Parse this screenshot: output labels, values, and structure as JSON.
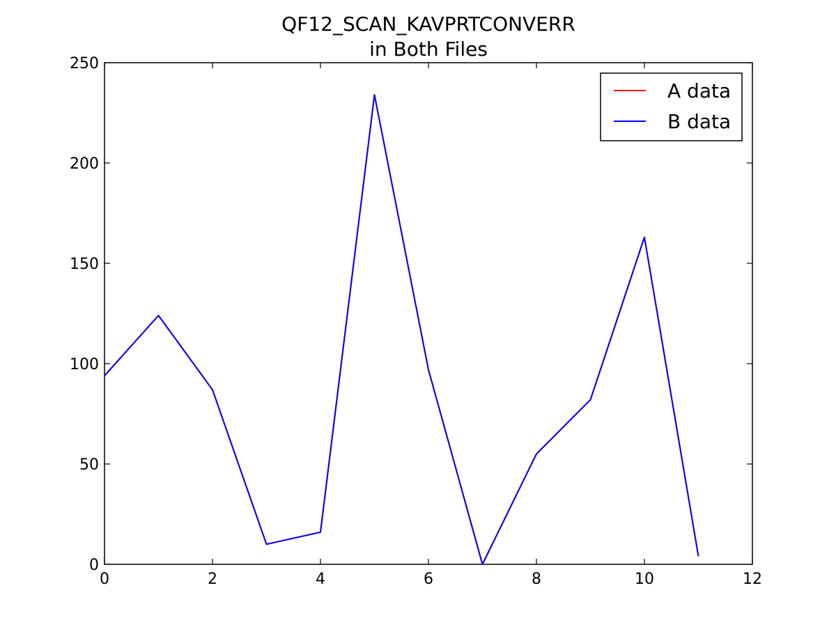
{
  "chart_data": {
    "type": "line",
    "title": "QF12_SCAN_KAVPRTCONVERR",
    "subtitle": "in Both Files",
    "xlabel": "",
    "ylabel": "",
    "xlim": [
      0,
      12
    ],
    "ylim": [
      0,
      250
    ],
    "xticks": [
      0,
      2,
      4,
      6,
      8,
      10,
      12
    ],
    "yticks": [
      0,
      50,
      100,
      150,
      200,
      250
    ],
    "grid": false,
    "legend_position": "top-right",
    "series": [
      {
        "name": "A data",
        "color": "#ff0000",
        "x": [
          0,
          1,
          2,
          3,
          4,
          5,
          6,
          7,
          8,
          9,
          10,
          11
        ],
        "values": [
          94,
          124,
          87,
          10,
          16,
          234,
          97,
          0,
          55,
          82,
          163,
          4
        ]
      },
      {
        "name": "B data",
        "color": "#0000ff",
        "x": [
          0,
          1,
          2,
          3,
          4,
          5,
          6,
          7,
          8,
          9,
          10,
          11
        ],
        "values": [
          94,
          124,
          87,
          10,
          16,
          234,
          97,
          0,
          55,
          82,
          163,
          4
        ]
      }
    ]
  }
}
